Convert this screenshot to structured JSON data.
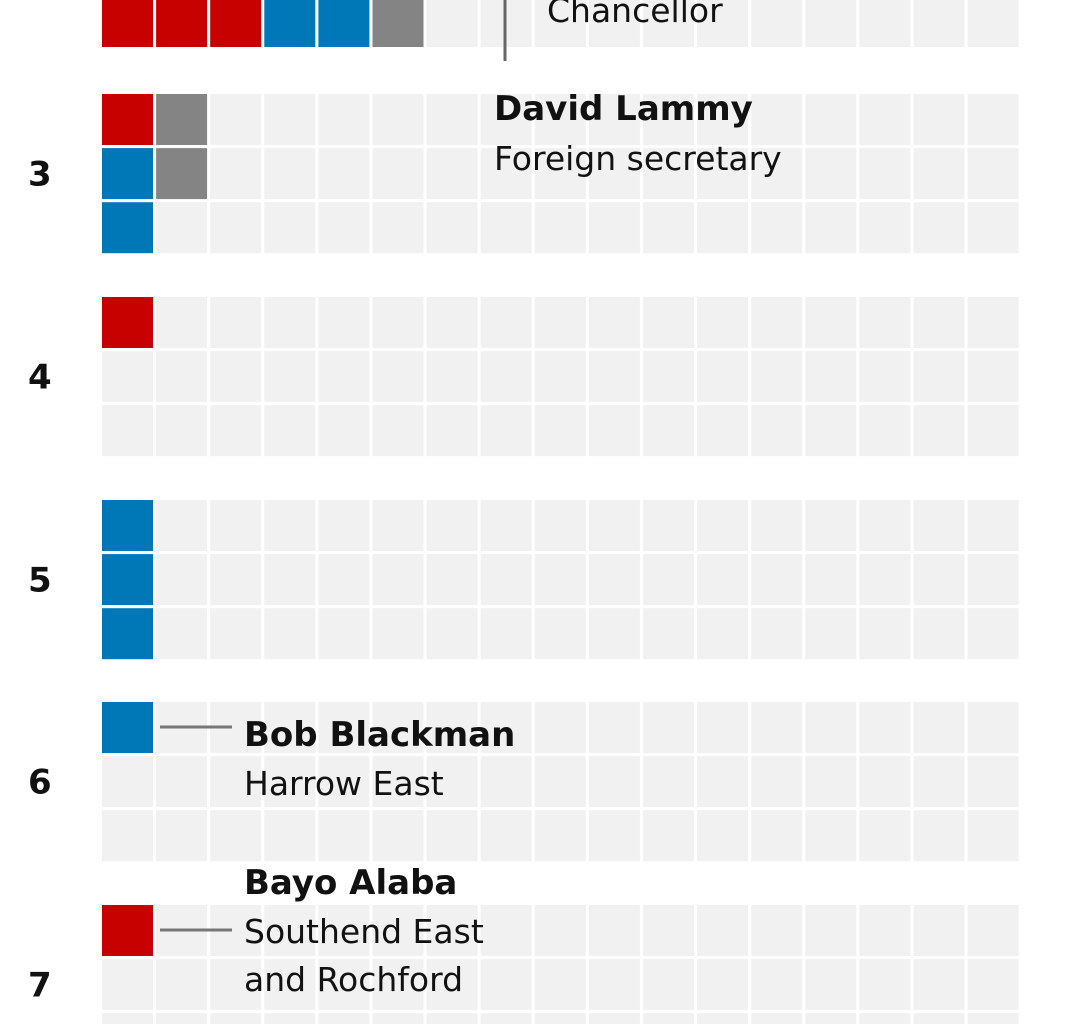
{
  "colors": {
    "labour": "#c70000",
    "conservative": "#0077b6",
    "other": "#848484",
    "empty": "#f1f1f1"
  },
  "chart_data": {
    "type": "waffle",
    "columns": 17,
    "rows_per_group": 3,
    "fill_order": "column-major",
    "groups": [
      {
        "label": "",
        "cells": [
          "labour",
          "labour",
          "labour",
          "conservative",
          "conservative",
          "other"
        ],
        "single_row": true
      },
      {
        "label": "3",
        "cells": [
          "labour",
          "conservative",
          "conservative",
          "other",
          "other"
        ]
      },
      {
        "label": "4",
        "cells": [
          "labour"
        ]
      },
      {
        "label": "5",
        "cells": [
          "conservative",
          "conservative",
          "conservative"
        ]
      },
      {
        "label": "6",
        "cells": [
          "conservative"
        ]
      },
      {
        "label": "7",
        "cells": [
          "labour"
        ]
      }
    ],
    "annotations": [
      {
        "group": 0,
        "name": "",
        "lines": [
          "Chancellor"
        ],
        "connector": "vertical"
      },
      {
        "group": 1,
        "name": "David Lammy",
        "lines": [
          "Foreign secretary"
        ],
        "connector": "none"
      },
      {
        "group": 4,
        "name": "Bob Blackman",
        "lines": [
          "Harrow East"
        ],
        "connector": "horizontal"
      },
      {
        "group": 5,
        "name": "Bayo Alaba",
        "lines": [
          "Southend East",
          "and Rochford"
        ],
        "connector": "horizontal"
      }
    ]
  }
}
